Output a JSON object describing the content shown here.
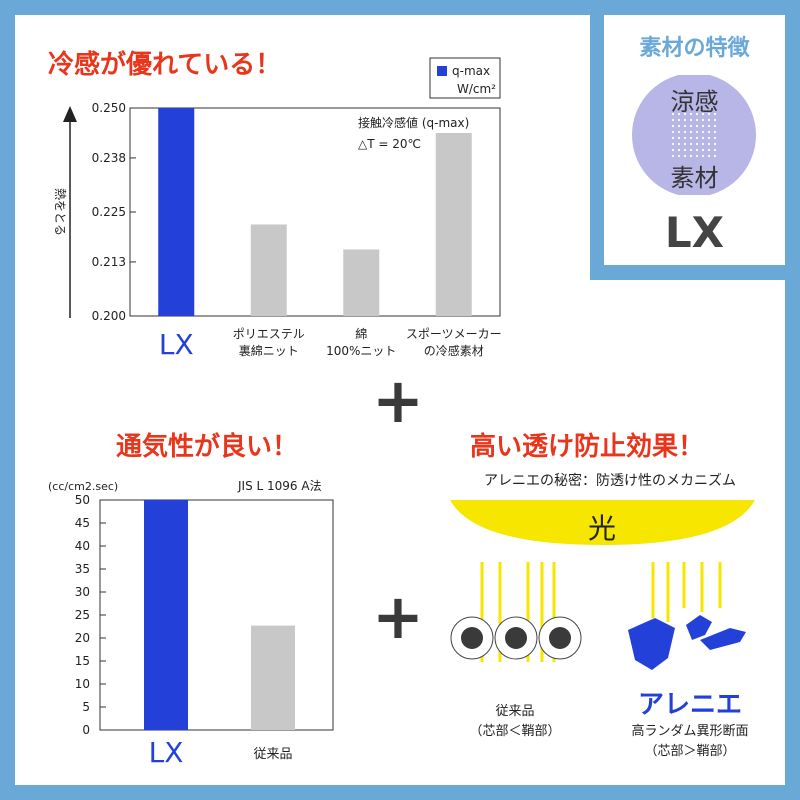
{
  "chart_data": [
    {
      "type": "bar",
      "title": "冷感が優れている！",
      "categories": [
        "LX",
        "ポリエステル裏綿ニット",
        "綿100%ニット",
        "スポーツメーカーの冷感素材"
      ],
      "category_lines": [
        [
          "LX"
        ],
        [
          "ポリエステル",
          "裏綿ニット"
        ],
        [
          "綿",
          "100%ニット"
        ],
        [
          "スポーツメーカー",
          "の冷感素材"
        ]
      ],
      "values": [
        0.25,
        0.222,
        0.216,
        0.244
      ],
      "colors": [
        "#2341d8",
        "#c8c8c8",
        "#c8c8c8",
        "#c8c8c8"
      ],
      "ylabel": "熱をとる",
      "ylim": [
        0.2,
        0.25
      ],
      "yticks": [
        "0.200",
        "0.213",
        "0.225",
        "0.238",
        "0.250"
      ],
      "legend": {
        "label": "q-max",
        "unit": "W/cm²"
      },
      "annotation": [
        "接触冷感値 (q-max)",
        "△T = 20℃"
      ]
    },
    {
      "type": "bar",
      "title": "通気性が良い！",
      "categories": [
        "LX",
        "従来品"
      ],
      "values": [
        50,
        22.7
      ],
      "colors": [
        "#2341d8",
        "#c8c8c8"
      ],
      "ylabel": "(cc/cm2.sec)",
      "ylim": [
        0,
        50
      ],
      "yticks": [
        "0",
        "5",
        "10",
        "15",
        "20",
        "25",
        "30",
        "35",
        "40",
        "45",
        "50"
      ],
      "annotation": "JIS L 1096  A法"
    }
  ],
  "badge": {
    "title": "素材の特徴",
    "circle_line1": "涼感",
    "circle_line2": "素材",
    "brand": "LX"
  },
  "plus": [
    "+",
    "+"
  ],
  "mechanism": {
    "title": "高い透け防止効果！",
    "subtitle": "アレニエの秘密：防透け性のメカニズム",
    "light": "光",
    "left_label": [
      "従来品",
      "（芯部＜鞘部）"
    ],
    "right_title": "アレニエ",
    "right_label": [
      "高ランダム異形断面",
      "（芯部＞鞘部）"
    ]
  },
  "colors": {
    "frame": "#6aa8d8",
    "accent": "#e8351b",
    "lx": "#2341d8",
    "bar_gray": "#c8c8c8",
    "light": "#f7e600",
    "circle_bg": "#b8b6e6"
  }
}
